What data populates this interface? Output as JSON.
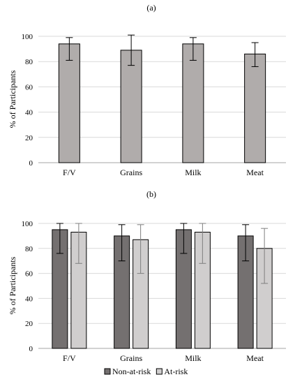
{
  "chart_data": [
    {
      "type": "bar",
      "title": "(a)",
      "ylabel": "% of Participants",
      "xlabel": "",
      "ylim": [
        0,
        100
      ],
      "yticks": [
        0,
        20,
        40,
        60,
        80,
        100
      ],
      "grid": true,
      "categories": [
        "F/V",
        "Grains",
        "Milk",
        "Meat"
      ],
      "series": [
        {
          "values": [
            94,
            89,
            94,
            86
          ],
          "err_low": [
            81,
            77,
            81,
            76
          ],
          "err_high": [
            99,
            101,
            99,
            95
          ],
          "color": "#b0acab"
        }
      ]
    },
    {
      "type": "bar",
      "title": "(b)",
      "ylabel": "% of Participants",
      "xlabel": "",
      "ylim": [
        0,
        100
      ],
      "yticks": [
        0,
        20,
        40,
        60,
        80,
        100
      ],
      "grid": true,
      "legend_position": "bottom",
      "categories": [
        "F/V",
        "Grains",
        "Milk",
        "Meat"
      ],
      "series": [
        {
          "name": "Non-at-risk",
          "values": [
            95,
            90,
            95,
            90
          ],
          "err_low": [
            76,
            70,
            76,
            70
          ],
          "err_high": [
            100,
            99,
            100,
            99
          ],
          "color": "#747070"
        },
        {
          "name": "At-risk",
          "values": [
            93,
            87,
            93,
            80
          ],
          "err_low": [
            68,
            60,
            68,
            52
          ],
          "err_high": [
            100,
            99,
            100,
            96
          ],
          "color": "#d0cece"
        }
      ]
    }
  ]
}
